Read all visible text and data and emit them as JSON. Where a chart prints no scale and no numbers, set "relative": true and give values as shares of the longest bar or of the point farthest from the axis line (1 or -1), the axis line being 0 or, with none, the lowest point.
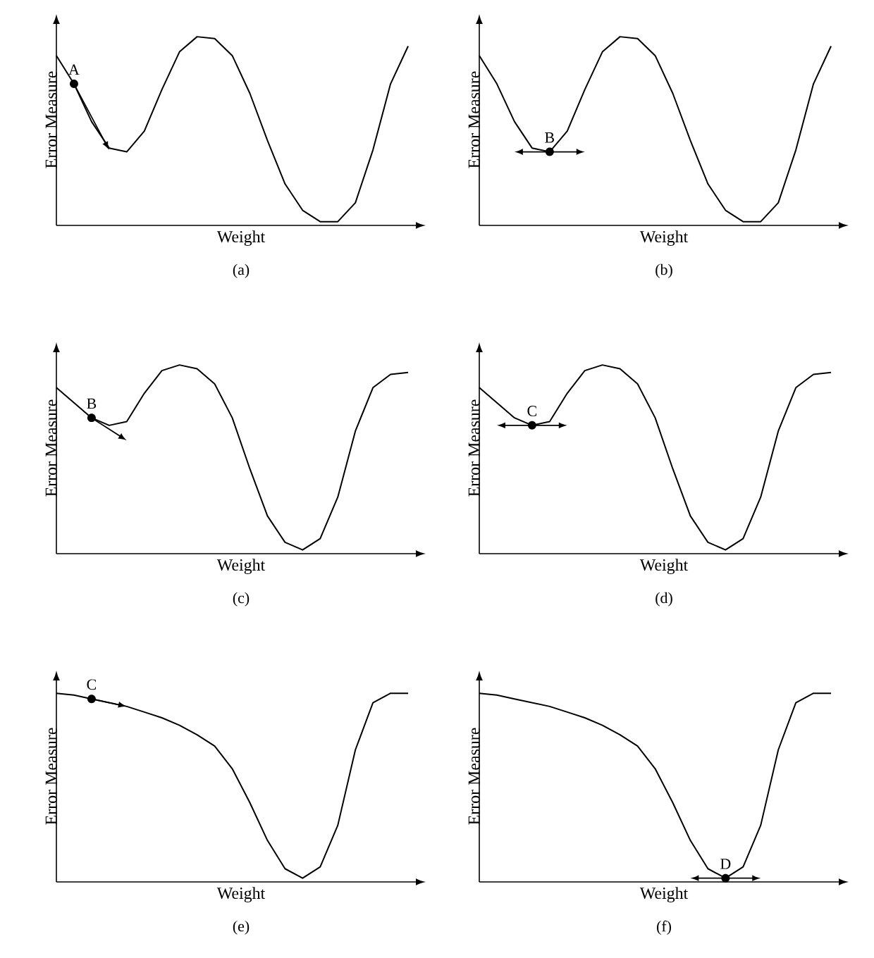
{
  "chart_data": [
    {
      "type": "line",
      "relative": true,
      "tick_labels": false,
      "xlabel": "Weight",
      "ylabel": "Error Measure",
      "subtitle": "(a)",
      "categories": [
        null,
        null,
        null,
        null,
        null,
        null,
        null,
        null,
        null,
        null,
        null,
        null,
        null,
        null,
        null,
        null,
        null,
        null,
        null,
        null,
        null
      ],
      "series": [
        {
          "color": "#000000",
          "values": [
            0.9,
            0.75,
            0.55,
            0.41,
            0.39,
            0.5,
            0.72,
            0.92,
            1.0,
            0.99,
            0.9,
            0.7,
            0.45,
            0.22,
            0.08,
            0.02,
            0.02,
            0.12,
            0.4,
            0.75,
            0.95
          ]
        }
      ],
      "annotations": [
        {
          "text": "A",
          "y": 0.75
        }
      ]
    },
    {
      "type": "line",
      "relative": true,
      "tick_labels": false,
      "xlabel": "Weight",
      "ylabel": "Error Measure",
      "subtitle": "(b)",
      "categories": [
        null,
        null,
        null,
        null,
        null,
        null,
        null,
        null,
        null,
        null,
        null,
        null,
        null,
        null,
        null,
        null,
        null,
        null,
        null,
        null,
        null
      ],
      "series": [
        {
          "color": "#000000",
          "values": [
            0.9,
            0.75,
            0.55,
            0.41,
            0.39,
            0.5,
            0.72,
            0.92,
            1.0,
            0.99,
            0.9,
            0.7,
            0.45,
            0.22,
            0.08,
            0.02,
            0.02,
            0.12,
            0.4,
            0.75,
            0.95
          ]
        }
      ],
      "annotations": [
        {
          "text": "B",
          "y": 0.39
        }
      ]
    },
    {
      "type": "line",
      "relative": true,
      "tick_labels": false,
      "xlabel": "Weight",
      "ylabel": "Error Measure",
      "subtitle": "(c)",
      "categories": [
        null,
        null,
        null,
        null,
        null,
        null,
        null,
        null,
        null,
        null,
        null,
        null,
        null,
        null,
        null,
        null,
        null,
        null,
        null,
        null,
        null
      ],
      "series": [
        {
          "color": "#000000",
          "values": [
            0.88,
            0.8,
            0.72,
            0.68,
            0.7,
            0.85,
            0.97,
            1.0,
            0.98,
            0.9,
            0.72,
            0.45,
            0.2,
            0.06,
            0.02,
            0.08,
            0.3,
            0.65,
            0.88,
            0.95,
            0.96
          ]
        }
      ],
      "annotations": [
        {
          "text": "B",
          "y": 0.72
        }
      ]
    },
    {
      "type": "line",
      "relative": true,
      "tick_labels": false,
      "xlabel": "Weight",
      "ylabel": "Error Measure",
      "subtitle": "(d)",
      "categories": [
        null,
        null,
        null,
        null,
        null,
        null,
        null,
        null,
        null,
        null,
        null,
        null,
        null,
        null,
        null,
        null,
        null,
        null,
        null,
        null,
        null
      ],
      "series": [
        {
          "color": "#000000",
          "values": [
            0.88,
            0.8,
            0.72,
            0.68,
            0.7,
            0.85,
            0.97,
            1.0,
            0.98,
            0.9,
            0.72,
            0.45,
            0.2,
            0.06,
            0.02,
            0.08,
            0.3,
            0.65,
            0.88,
            0.95,
            0.96
          ]
        }
      ],
      "annotations": [
        {
          "text": "C",
          "y": 0.68
        }
      ]
    },
    {
      "type": "line",
      "relative": true,
      "tick_labels": false,
      "xlabel": "Weight",
      "ylabel": "Error Measure",
      "subtitle": "(e)",
      "categories": [
        null,
        null,
        null,
        null,
        null,
        null,
        null,
        null,
        null,
        null,
        null,
        null,
        null,
        null,
        null,
        null,
        null,
        null,
        null,
        null,
        null
      ],
      "series": [
        {
          "color": "#000000",
          "values": [
            1.0,
            0.99,
            0.97,
            0.95,
            0.93,
            0.9,
            0.87,
            0.83,
            0.78,
            0.72,
            0.6,
            0.42,
            0.22,
            0.07,
            0.02,
            0.08,
            0.3,
            0.7,
            0.95,
            1.0,
            1.0
          ]
        }
      ],
      "annotations": [
        {
          "text": "C",
          "y": 0.97
        }
      ]
    },
    {
      "type": "line",
      "relative": true,
      "tick_labels": false,
      "xlabel": "Weight",
      "ylabel": "Error Measure",
      "subtitle": "(f)",
      "categories": [
        null,
        null,
        null,
        null,
        null,
        null,
        null,
        null,
        null,
        null,
        null,
        null,
        null,
        null,
        null,
        null,
        null,
        null,
        null,
        null,
        null
      ],
      "series": [
        {
          "color": "#000000",
          "values": [
            1.0,
            0.99,
            0.97,
            0.95,
            0.93,
            0.9,
            0.87,
            0.83,
            0.78,
            0.72,
            0.6,
            0.42,
            0.22,
            0.07,
            0.02,
            0.08,
            0.3,
            0.7,
            0.95,
            1.0,
            1.0
          ]
        }
      ],
      "annotations": [
        {
          "text": "D",
          "y": 0.02
        }
      ]
    }
  ]
}
